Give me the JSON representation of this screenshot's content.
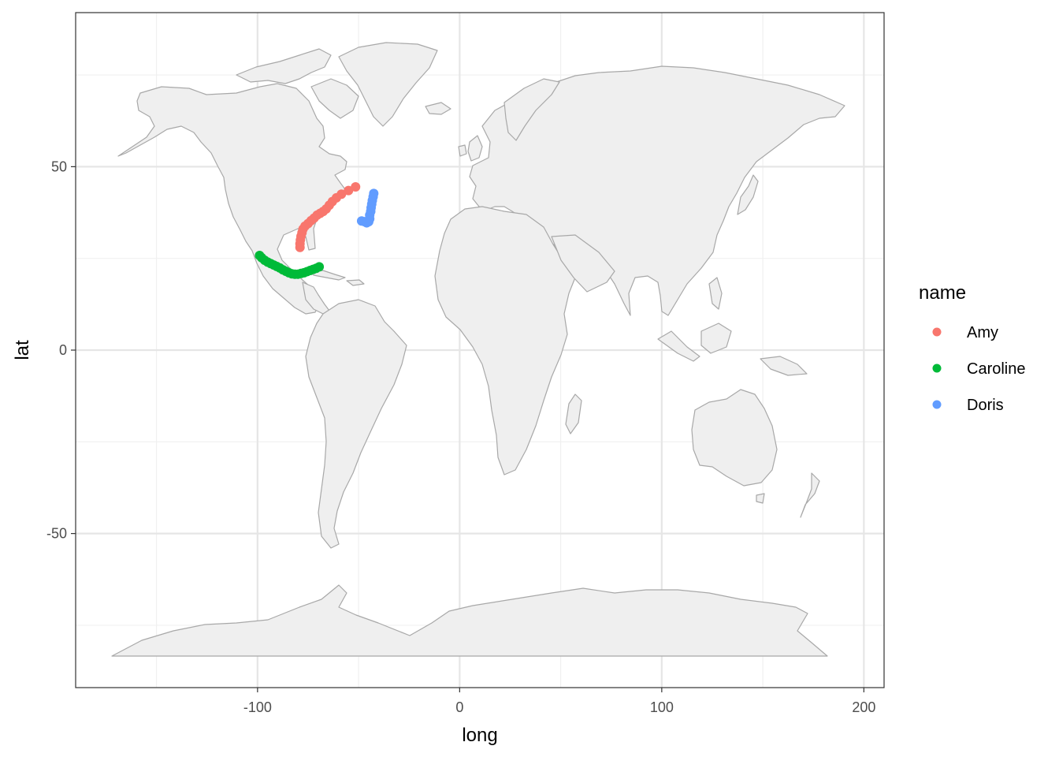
{
  "chart_data": {
    "type": "scatter",
    "xlabel": "long",
    "ylabel": "lat",
    "xlim": [
      -190,
      210
    ],
    "ylim": [
      -92,
      92
    ],
    "x_ticks": [
      -100,
      0,
      100,
      200
    ],
    "x_tick_labels": [
      "-100",
      "0",
      "100",
      "200"
    ],
    "y_ticks": [
      -50,
      0,
      50
    ],
    "y_tick_labels": [
      "-50",
      "0",
      "50"
    ],
    "grid": true,
    "basemap": "world country outlines",
    "legend": {
      "title": "name",
      "placement": "right"
    },
    "series": [
      {
        "name": "Amy",
        "color": "#F8766D",
        "points": [
          [
            -79.0,
            28.0
          ],
          [
            -79.0,
            29.0
          ],
          [
            -78.8,
            30.0
          ],
          [
            -78.5,
            31.0
          ],
          [
            -78.0,
            32.0
          ],
          [
            -77.5,
            33.0
          ],
          [
            -76.5,
            33.8
          ],
          [
            -75.0,
            34.5
          ],
          [
            -73.5,
            35.3
          ],
          [
            -72.0,
            36.0
          ],
          [
            -70.5,
            36.8
          ],
          [
            -69.0,
            37.3
          ],
          [
            -67.5,
            37.8
          ],
          [
            -66.0,
            38.5
          ],
          [
            -64.5,
            39.5
          ],
          [
            -63.0,
            40.5
          ],
          [
            -61.0,
            41.5
          ],
          [
            -58.5,
            42.5
          ],
          [
            -55.0,
            43.5
          ],
          [
            -51.5,
            44.5
          ]
        ]
      },
      {
        "name": "Caroline",
        "color": "#00BA38",
        "points": [
          [
            -99.0,
            25.8
          ],
          [
            -98.0,
            25.2
          ],
          [
            -96.5,
            24.5
          ],
          [
            -95.0,
            24.0
          ],
          [
            -93.5,
            23.6
          ],
          [
            -92.0,
            23.2
          ],
          [
            -90.5,
            22.8
          ],
          [
            -89.0,
            22.4
          ],
          [
            -87.5,
            21.9
          ],
          [
            -86.0,
            21.5
          ],
          [
            -84.5,
            21.1
          ],
          [
            -83.0,
            20.8
          ],
          [
            -81.5,
            20.7
          ],
          [
            -80.0,
            20.7
          ],
          [
            -78.5,
            20.9
          ],
          [
            -77.0,
            21.1
          ],
          [
            -75.5,
            21.4
          ],
          [
            -74.0,
            21.7
          ],
          [
            -72.5,
            22.0
          ],
          [
            -71.0,
            22.3
          ],
          [
            -69.5,
            22.7
          ]
        ]
      },
      {
        "name": "Doris",
        "color": "#619CFF",
        "points": [
          [
            -48.5,
            35.2
          ],
          [
            -47.0,
            35.0
          ],
          [
            -46.0,
            34.7
          ],
          [
            -45.0,
            35.0
          ],
          [
            -44.5,
            35.8
          ],
          [
            -44.5,
            36.8
          ],
          [
            -44.0,
            37.8
          ],
          [
            -43.8,
            38.8
          ],
          [
            -43.5,
            39.8
          ],
          [
            -43.2,
            40.8
          ],
          [
            -42.8,
            41.8
          ],
          [
            -42.5,
            42.7
          ]
        ]
      }
    ]
  }
}
